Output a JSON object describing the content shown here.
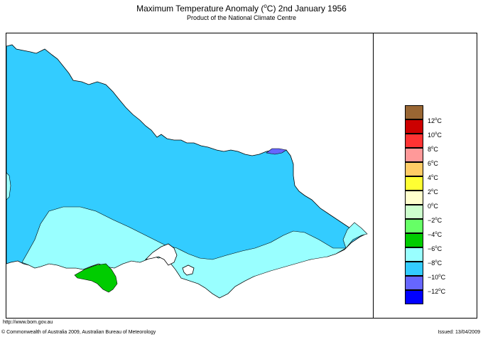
{
  "header": {
    "title_prefix": "Maximum Temperature Anomaly (",
    "title_degree": "o",
    "title_suffix": "C)  2nd January 1956",
    "subtitle": "Product of the National Climate Centre"
  },
  "legend": {
    "entries": [
      {
        "label": "12",
        "color": "#996633"
      },
      {
        "label": "10",
        "color": "#cc0000"
      },
      {
        "label": "8",
        "color": "#ff3333"
      },
      {
        "label": "6",
        "color": "#ff9999"
      },
      {
        "label": "4",
        "color": "#ffcc66"
      },
      {
        "label": "2",
        "color": "#ffff33"
      },
      {
        "label": "0",
        "color": "#ffffcc"
      },
      {
        "label": "−2",
        "color": "#ccffcc"
      },
      {
        "label": "−4",
        "color": "#66ff66"
      },
      {
        "label": "−6",
        "color": "#00cc00"
      },
      {
        "label": "−8",
        "color": "#99ffff"
      },
      {
        "label": "−10",
        "color": "#33ccff"
      },
      {
        "label": "−12",
        "color": "#6666ff"
      },
      {
        "label": "",
        "color": "#0000ff"
      }
    ],
    "unit": "C",
    "degree": "o"
  },
  "map": {
    "regions": [
      {
        "name": "region-minus-10",
        "color": "#33ccff"
      },
      {
        "name": "region-minus-8",
        "color": "#99ffff"
      },
      {
        "name": "region-minus-6",
        "color": "#00cc00"
      },
      {
        "name": "region-minus-12",
        "color": "#6666ff"
      }
    ]
  },
  "footer": {
    "url": "http://www.bom.gov.au",
    "copyright": "© Commonwealth of Australia 2009, Australian Bureau of Meteorology",
    "issued": "Issued: 13/04/2009"
  }
}
